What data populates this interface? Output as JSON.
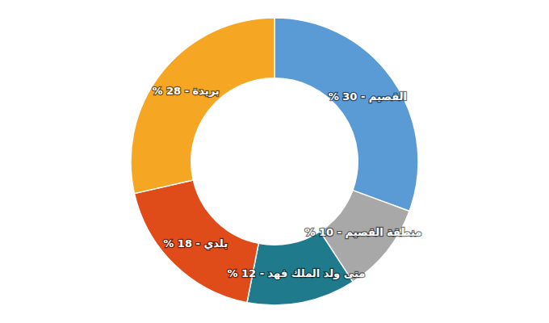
{
  "chart_data": {
    "type": "donut",
    "values": [
      30,
      10,
      12,
      18,
      28
    ],
    "value_labels": [
      "% 30 - القصيم",
      "% 10 - منطقة القصيم",
      "% 12 - متى ولد الملك فهد",
      "% 18 - بلدي",
      "% 28 - بريدة"
    ],
    "colors": [
      "#5B9BD5",
      "#A8A8A8",
      "#1F7A8C",
      "#E04B1A",
      "#F5A623"
    ],
    "data_labels": true
  }
}
